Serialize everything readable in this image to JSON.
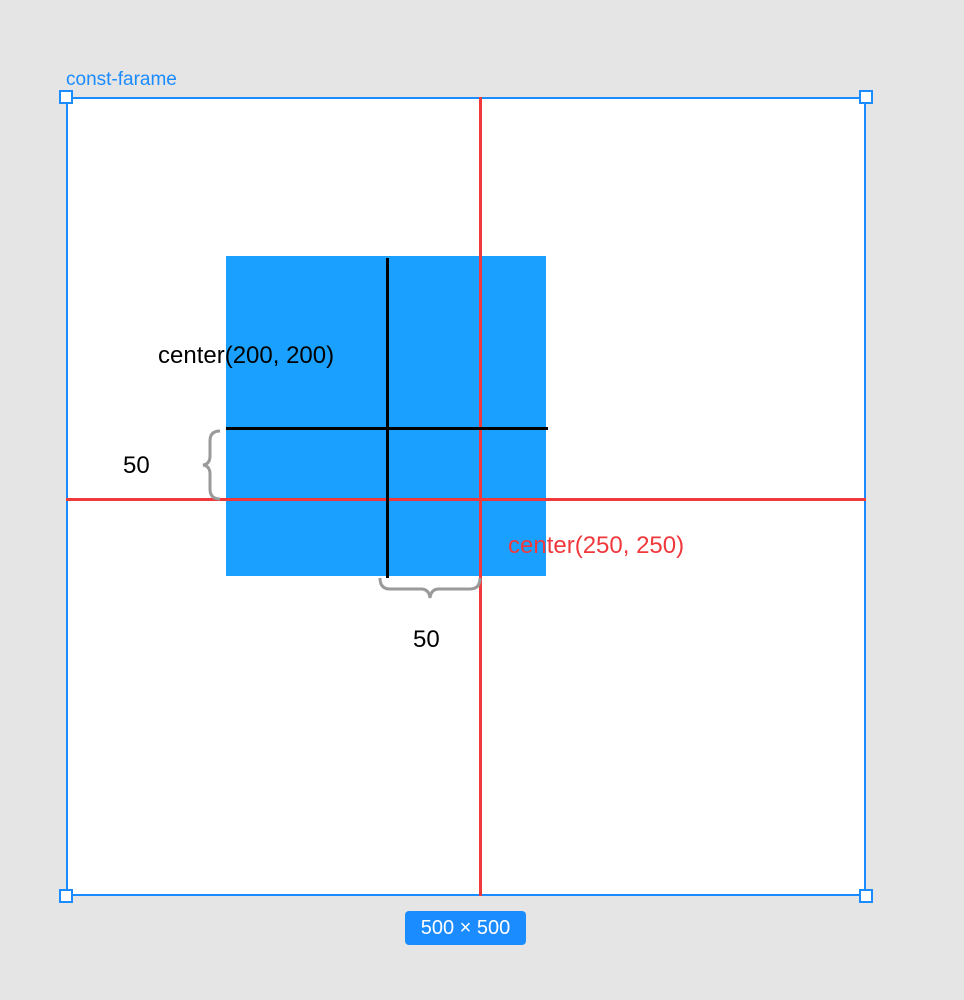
{
  "frame": {
    "name": "const-farame",
    "size_badge": "500 × 500"
  },
  "labels": {
    "inner_center": "center(200, 200)",
    "outer_center": "center(250, 250)",
    "vertical_offset": "50",
    "horizontal_offset": "50"
  },
  "colors": {
    "selection": "#1a8cff",
    "square": "#1aa1ff",
    "guide_red": "#f0393d",
    "guide_black": "#000000",
    "brace": "#9a9a9a",
    "canvas": "#e5e5e5"
  }
}
